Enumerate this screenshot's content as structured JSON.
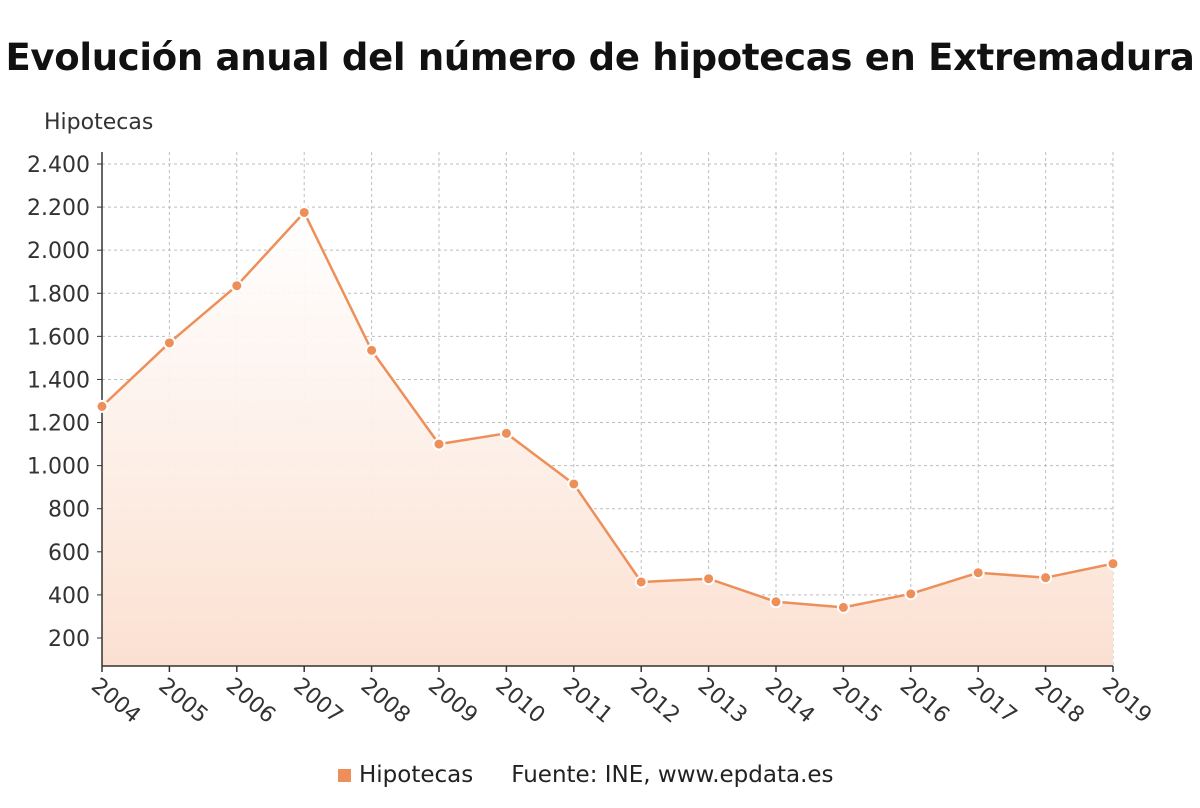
{
  "chart_data": {
    "type": "area",
    "title": "Evolución anual del número de hipotecas en Extremadura",
    "ylabel": "Hipotecas",
    "xlabel": "",
    "x": [
      "2004",
      "2005",
      "2006",
      "2007",
      "2008",
      "2009",
      "2010",
      "2011",
      "2012",
      "2013",
      "2014",
      "2015",
      "2016",
      "2017",
      "2018",
      "2019"
    ],
    "series": [
      {
        "name": "Hipotecas",
        "values": [
          1275,
          1570,
          1835,
          2175,
          1535,
          1100,
          1150,
          915,
          460,
          475,
          368,
          342,
          405,
          503,
          480,
          545
        ]
      }
    ],
    "y_ticks": [
      "2.400",
      "2.200",
      "2.000",
      "1.800",
      "1.600",
      "1.400",
      "1.200",
      "1.000",
      "800",
      "600",
      "400",
      "200"
    ],
    "y_tick_values": [
      2400,
      2200,
      2000,
      1800,
      1600,
      1400,
      1200,
      1000,
      800,
      600,
      400,
      200
    ],
    "ylim": [
      70,
      2400
    ],
    "grid": true,
    "legend": "bottom",
    "colors": {
      "line": "#ee8f5a",
      "fill": "#fbe3d6",
      "grid": "#bdbdbd"
    }
  },
  "footer": {
    "legend_label": "Hipotecas",
    "source": "Fuente: INE, www.epdata.es"
  }
}
